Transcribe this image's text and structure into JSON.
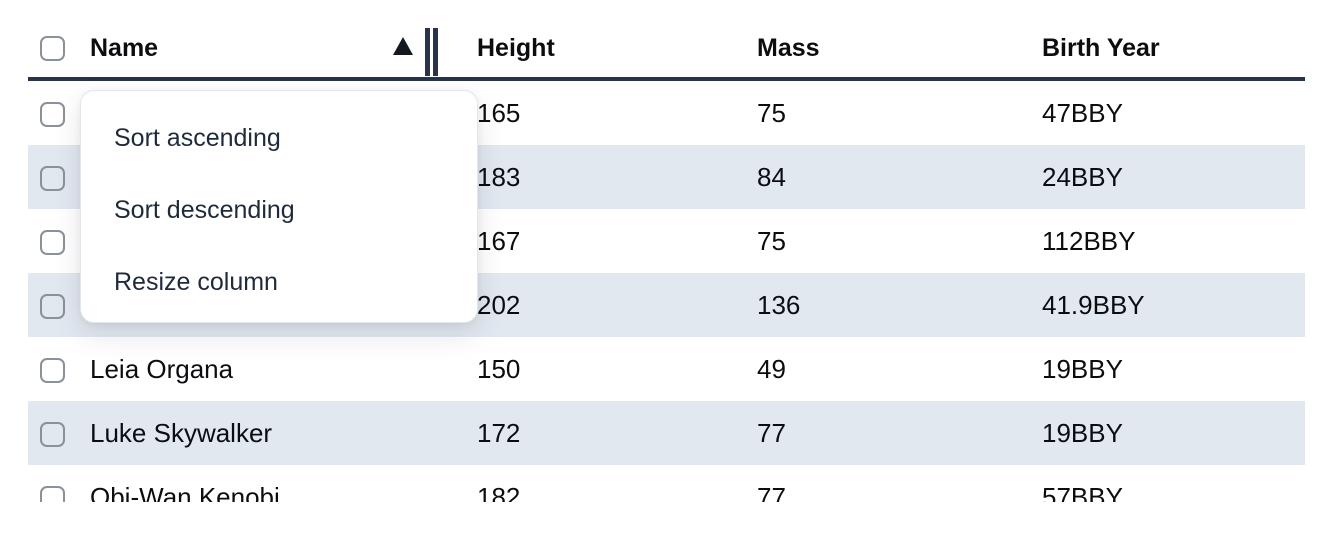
{
  "table": {
    "columns": [
      {
        "label": "Name",
        "sorted": "ascending"
      },
      {
        "label": "Height"
      },
      {
        "label": "Mass"
      },
      {
        "label": "Birth Year"
      }
    ],
    "rows": [
      {
        "name": "",
        "height": "165",
        "mass": "75",
        "birth_year": "47BBY"
      },
      {
        "name": "",
        "height": "183",
        "mass": "84",
        "birth_year": "24BBY"
      },
      {
        "name": "",
        "height": "167",
        "mass": "75",
        "birth_year": "112BBY"
      },
      {
        "name": "",
        "height": "202",
        "mass": "136",
        "birth_year": "41.9BBY"
      },
      {
        "name": "Leia Organa",
        "height": "150",
        "mass": "49",
        "birth_year": "19BBY"
      },
      {
        "name": "Luke Skywalker",
        "height": "172",
        "mass": "77",
        "birth_year": "19BBY"
      },
      {
        "name": "Obi-Wan Kenobi",
        "height": "182",
        "mass": "77",
        "birth_year": "57BBY"
      }
    ]
  },
  "context_menu": {
    "items": [
      "Sort ascending",
      "Sort descending",
      "Resize column"
    ]
  },
  "icons": {
    "sort_ascending": "ascending-triangle",
    "resize_handle": "double-vertical-bar",
    "row_select": "checkbox"
  },
  "colors": {
    "row_stripe": "#e2e8f0",
    "header_border": "#263349",
    "menu_text": "#1f2a3a",
    "checkbox_border": "#8b9199",
    "background": "#ffffff"
  }
}
